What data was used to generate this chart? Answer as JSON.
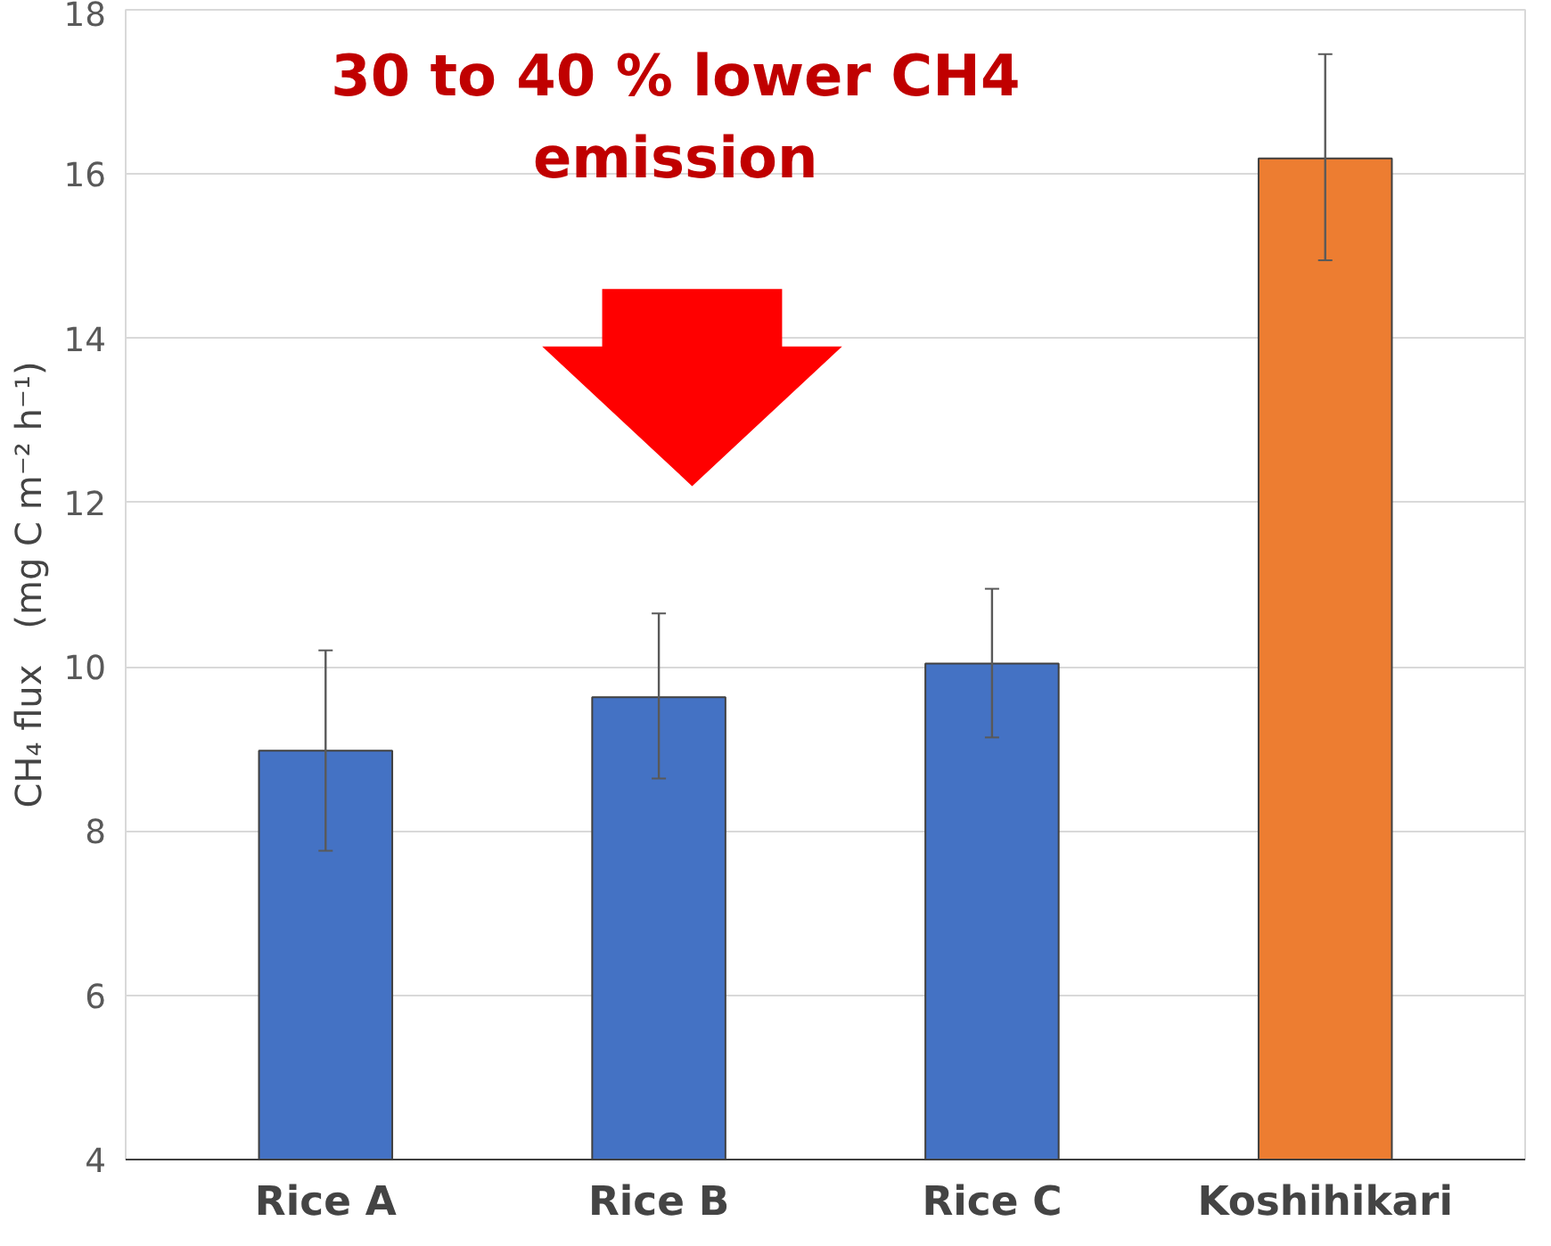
{
  "chart_data": {
    "type": "bar",
    "ylabel": "CH₄ flux　(mg C m⁻² h⁻¹)",
    "categories": [
      "Rice A",
      "Rice B",
      "Rice C",
      "Koshihikari"
    ],
    "values": [
      8.98,
      9.63,
      10.04,
      16.19
    ],
    "colors": [
      "#4472c4",
      "#4472c4",
      "#4472c4",
      "#ed7d31"
    ],
    "errors": [
      [
        7.76,
        10.2
      ],
      [
        8.64,
        10.65
      ],
      [
        9.14,
        10.95
      ],
      [
        14.95,
        17.46
      ]
    ],
    "ylim": [
      4,
      18
    ],
    "yticks": [
      4,
      6,
      8,
      10,
      12,
      14,
      16,
      18
    ],
    "grid": "y",
    "annotations": [
      "30 to 40 % lower CH4 emission"
    ]
  }
}
